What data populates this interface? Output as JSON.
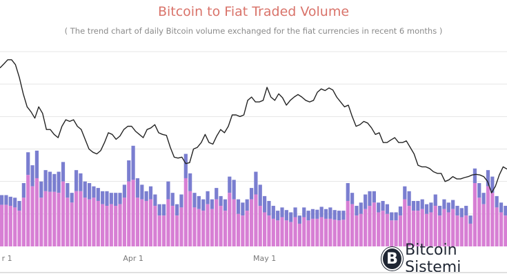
{
  "header": {
    "title": "Bitcoin to Fiat Traded Volume",
    "subtitle": "( The trend chart of daily Bitcoin volume exchanged for the fiat currencies in recent 6 months )"
  },
  "brand": {
    "logo_glyph": "B",
    "name": "Bitcoin Sistemi"
  },
  "colors": {
    "title": "#d9736a",
    "bar_primary": "#d77fd4",
    "bar_secondary": "#7a7ed0",
    "line": "#222222",
    "grid": "#e4e4e4"
  },
  "chart_data": {
    "type": "bar",
    "title": "Bitcoin to Fiat Traded Volume",
    "subtitle": "( The trend chart of daily Bitcoin volume exchanged for the fiat currencies in recent 6 months )",
    "xlabel": "",
    "ylabel": "",
    "x_tick_labels": [
      {
        "label": "r 1",
        "index": 0
      },
      {
        "label": "Apr 1",
        "index": 30
      },
      {
        "label": "May 1",
        "index": 60
      }
    ],
    "grid": true,
    "ylim": [
      0,
      6
    ],
    "y_units": "relative (unlabeled gridline steps)",
    "legend": "none",
    "series": [
      {
        "name": "volume (lower segment)",
        "kind": "stacked-bar",
        "values": [
          1.28,
          1.28,
          1.25,
          1.2,
          1.1,
          1.5,
          2.2,
          1.85,
          2.1,
          1.5,
          1.7,
          1.68,
          1.68,
          1.65,
          2.0,
          1.5,
          1.35,
          1.7,
          1.7,
          1.5,
          1.45,
          1.5,
          1.4,
          1.3,
          1.25,
          1.3,
          1.25,
          1.3,
          1.5,
          2.0,
          2.05,
          1.5,
          1.45,
          1.4,
          1.45,
          1.25,
          0.95,
          0.95,
          1.45,
          1.25,
          0.95,
          1.2,
          2.1,
          1.7,
          1.2,
          1.15,
          1.1,
          1.3,
          1.15,
          1.45,
          1.25,
          1.1,
          1.65,
          1.45,
          1.0,
          0.95,
          1.1,
          1.45,
          1.6,
          1.25,
          1.05,
          0.95,
          0.85,
          0.8,
          0.9,
          0.8,
          0.75,
          0.9,
          0.7,
          0.9,
          0.8,
          0.85,
          0.85,
          0.9,
          0.85,
          0.85,
          0.82,
          0.8,
          0.82,
          1.4,
          1.3,
          0.95,
          1.0,
          1.15,
          1.25,
          1.35,
          1.05,
          1.1,
          1.0,
          0.8,
          0.8,
          0.95,
          1.45,
          1.25,
          1.1,
          1.1,
          1.15,
          1.0,
          1.05,
          1.25,
          0.95,
          1.15,
          1.05,
          1.15,
          0.95,
          0.9,
          0.95,
          0.7,
          1.95,
          1.5,
          1.3,
          1.85,
          1.65,
          1.2,
          1.05,
          0.95,
          1.1,
          1.0,
          1.15,
          0.9,
          0.95,
          0.85,
          2.75,
          1.55,
          2.3,
          1.3
        ]
      },
      {
        "name": "volume (upper segment)",
        "kind": "stacked-bar",
        "values": [
          0.3,
          0.3,
          0.28,
          0.3,
          0.3,
          0.45,
          0.7,
          0.65,
          0.85,
          0.5,
          0.65,
          0.62,
          0.55,
          0.65,
          0.6,
          0.45,
          0.3,
          0.65,
          0.55,
          0.5,
          0.5,
          0.35,
          0.4,
          0.4,
          0.45,
          0.35,
          0.4,
          0.35,
          0.4,
          0.65,
          1.05,
          0.6,
          0.45,
          0.3,
          0.4,
          0.35,
          0.35,
          0.35,
          0.55,
          0.4,
          0.35,
          0.4,
          0.75,
          0.55,
          0.45,
          0.4,
          0.35,
          0.4,
          0.3,
          0.35,
          0.3,
          0.35,
          0.5,
          0.6,
          0.45,
          0.4,
          0.35,
          0.35,
          0.7,
          0.65,
          0.5,
          0.45,
          0.4,
          0.3,
          0.3,
          0.32,
          0.3,
          0.3,
          0.25,
          0.3,
          0.3,
          0.3,
          0.28,
          0.32,
          0.3,
          0.35,
          0.3,
          0.3,
          0.28,
          0.55,
          0.35,
          0.3,
          0.35,
          0.45,
          0.45,
          0.35,
          0.3,
          0.3,
          0.3,
          0.25,
          0.25,
          0.28,
          0.4,
          0.45,
          0.3,
          0.3,
          0.3,
          0.3,
          0.3,
          0.35,
          0.3,
          0.3,
          0.3,
          0.28,
          0.3,
          0.28,
          0.3,
          0.25,
          0.45,
          0.45,
          0.35,
          0.5,
          0.5,
          0.35,
          0.3,
          0.3,
          0.3,
          0.3,
          0.3,
          0.3,
          0.28,
          0.3,
          0.5,
          0.35,
          0.45,
          0.3
        ]
      },
      {
        "name": "trend",
        "kind": "line",
        "values": [
          5.5,
          5.62,
          5.75,
          5.75,
          5.6,
          5.2,
          4.7,
          4.3,
          4.15,
          3.95,
          4.3,
          4.1,
          3.6,
          3.6,
          3.45,
          3.35,
          3.7,
          3.9,
          3.85,
          3.9,
          3.7,
          3.6,
          3.3,
          3.0,
          2.9,
          2.85,
          2.95,
          3.2,
          3.5,
          3.45,
          3.3,
          3.4,
          3.6,
          3.7,
          3.7,
          3.55,
          3.45,
          3.35,
          3.6,
          3.65,
          3.75,
          3.5,
          3.45,
          3.42,
          3.05,
          2.75,
          2.72,
          2.75,
          2.55,
          2.58,
          3.0,
          3.05,
          3.2,
          3.45,
          3.2,
          3.15,
          3.4,
          3.6,
          3.5,
          3.7,
          4.05,
          4.05,
          4.0,
          4.05,
          4.5,
          4.6,
          4.45,
          4.45,
          4.5,
          4.9,
          4.6,
          4.5,
          4.7,
          4.58,
          4.35,
          4.5,
          4.6,
          4.68,
          4.6,
          4.5,
          4.45,
          4.5,
          4.75,
          4.85,
          4.8,
          4.88,
          4.82,
          4.6,
          4.45,
          4.3,
          4.35,
          4.0,
          3.7,
          3.75,
          3.85,
          3.8,
          3.65,
          3.45,
          3.5,
          3.2,
          3.2,
          3.28,
          3.35,
          3.2,
          3.2,
          3.25,
          3.05,
          2.85,
          2.5,
          2.45,
          2.45,
          2.4,
          2.3,
          2.25,
          2.25,
          2.0,
          2.05,
          2.15,
          2.08,
          2.08,
          2.12,
          2.15,
          2.2,
          2.22,
          2.2,
          2.15,
          2.0,
          1.65,
          1.85,
          2.2,
          2.45,
          2.38
        ]
      }
    ]
  }
}
